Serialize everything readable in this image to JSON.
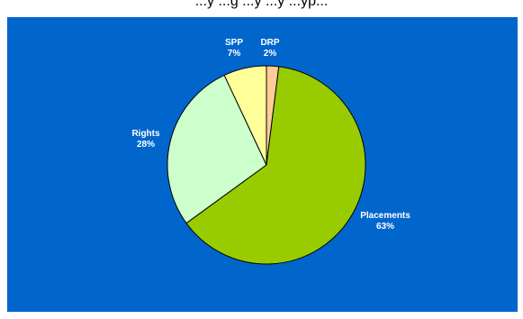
{
  "chart_data": {
    "type": "pie",
    "title": "...y ...g ...y ...y ...yp...",
    "categories": [
      "DRP",
      "Placements",
      "Rights",
      "SPP"
    ],
    "values": [
      2,
      63,
      28,
      7
    ],
    "value_labels": [
      "2%",
      "63%",
      "28%",
      "7%"
    ],
    "colors": [
      "#ffcc99",
      "#99cc00",
      "#ccffcc",
      "#ffff99"
    ],
    "background": "#0066cc",
    "legend": "none"
  }
}
